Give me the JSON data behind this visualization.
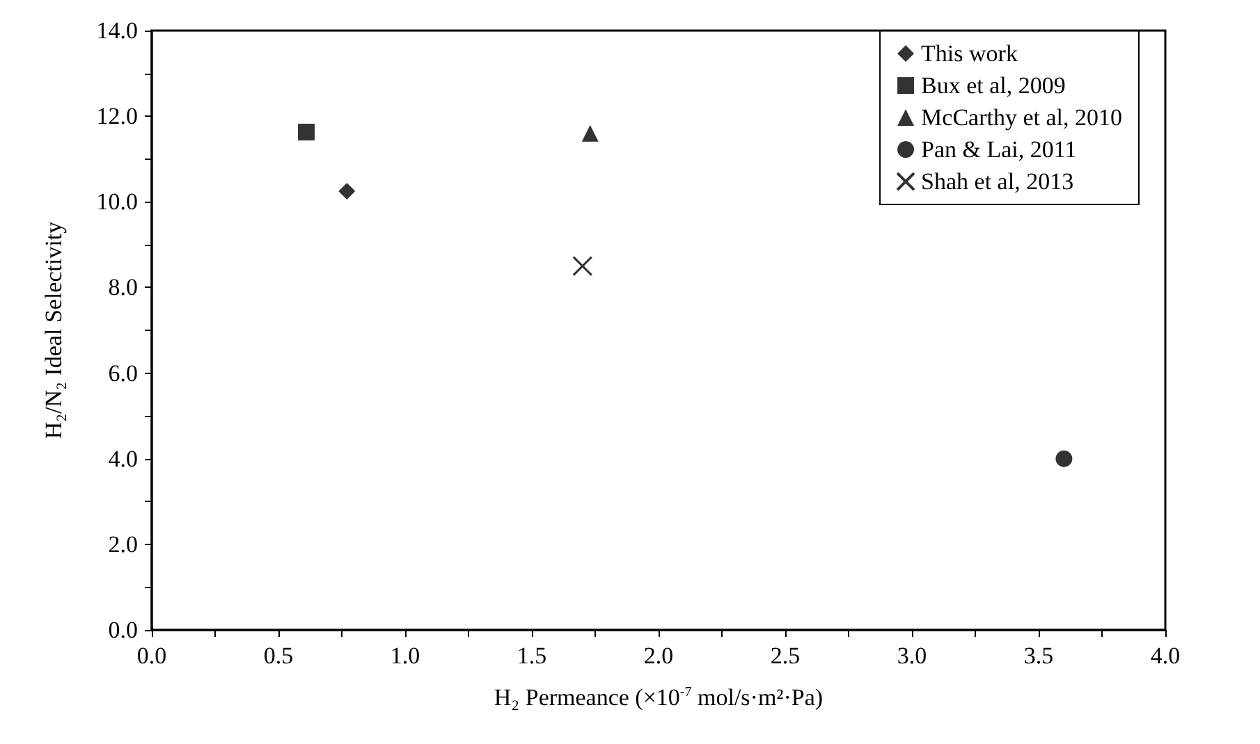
{
  "chart_data": {
    "type": "scatter",
    "xlabel": "H₂ Permeance (×10$^{-7}$ mol/s·m²·Pa)",
    "ylabel": "H₂/N₂ Ideal Selectivity",
    "xlim": [
      0,
      4
    ],
    "ylim": [
      0,
      14
    ],
    "xticks": [
      {
        "value": 0,
        "label": "0.0"
      },
      {
        "value": 0.25,
        "label": null
      },
      {
        "value": 0.5,
        "label": "0.5"
      },
      {
        "value": 0.75,
        "label": null
      },
      {
        "value": 1,
        "label": "1.0"
      },
      {
        "value": 1.25,
        "label": null
      },
      {
        "value": 1.5,
        "label": "1.5"
      },
      {
        "value": 1.75,
        "label": null
      },
      {
        "value": 2,
        "label": "2.0"
      },
      {
        "value": 2.25,
        "label": null
      },
      {
        "value": 2.5,
        "label": "2.5"
      },
      {
        "value": 2.75,
        "label": null
      },
      {
        "value": 3,
        "label": "3.0"
      },
      {
        "value": 3.25,
        "label": null
      },
      {
        "value": 3.5,
        "label": "3.5"
      },
      {
        "value": 3.75,
        "label": null
      },
      {
        "value": 4,
        "label": "4.0"
      }
    ],
    "yticks": [
      {
        "value": 0,
        "label": "0.0"
      },
      {
        "value": 1,
        "label": null
      },
      {
        "value": 2,
        "label": "2.0"
      },
      {
        "value": 3,
        "label": null
      },
      {
        "value": 4,
        "label": "4.0"
      },
      {
        "value": 5,
        "label": null
      },
      {
        "value": 6,
        "label": "6.0"
      },
      {
        "value": 7,
        "label": null
      },
      {
        "value": 8,
        "label": "8.0"
      },
      {
        "value": 9,
        "label": null
      },
      {
        "value": 10,
        "label": "10.0"
      },
      {
        "value": 11,
        "label": null
      },
      {
        "value": 12,
        "label": "12.0"
      },
      {
        "value": 13,
        "label": null
      },
      {
        "value": 14,
        "label": "14.0"
      }
    ],
    "grid": false,
    "legend": "top right",
    "series": [
      {
        "name": "This work",
        "color": "#000000",
        "marker": "diamond",
        "x": [
          0.77
        ],
        "values": [
          10.25
        ]
      },
      {
        "name": "Bux et al, 2009",
        "color": "#000000",
        "marker": "square",
        "x": [
          0.61
        ],
        "values": [
          11.63
        ]
      },
      {
        "name": "McCarthy et al, 2010",
        "color": "#000000",
        "marker": "triangle",
        "x": [
          1.73
        ],
        "values": [
          11.6
        ]
      },
      {
        "name": "Pan & Lai, 2011",
        "color": "#000000",
        "marker": "circle",
        "x": [
          3.6
        ],
        "values": [
          4.0
        ]
      },
      {
        "name": "Shah et al, 2013",
        "color": "#000000",
        "marker": "cross",
        "x": [
          1.7
        ],
        "values": [
          8.5
        ]
      }
    ]
  }
}
